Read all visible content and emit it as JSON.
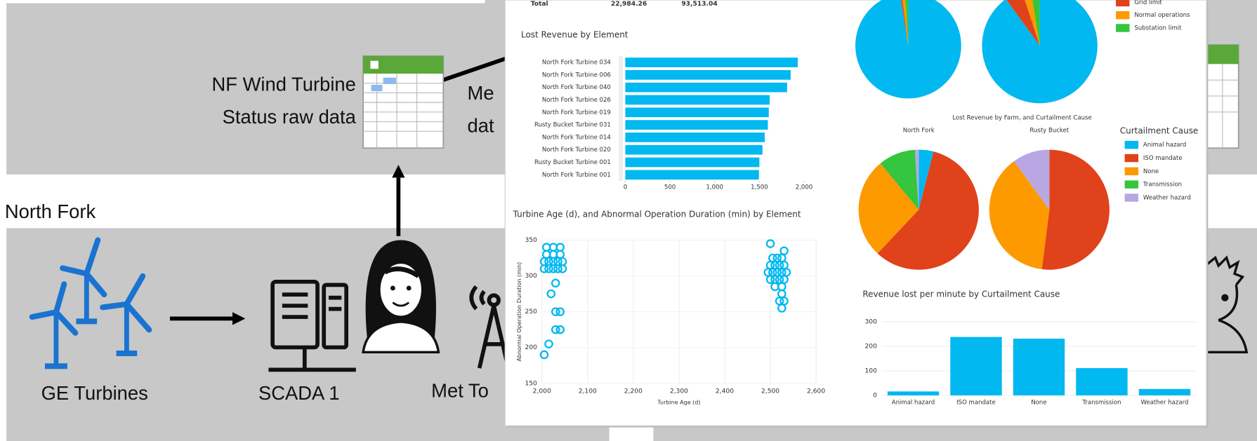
{
  "diagram": {
    "raw_data_label": [
      "NF Wind Turbine",
      "Status raw data"
    ],
    "met_data_label": [
      "Me",
      "dat"
    ],
    "farm_label": "North Fork",
    "nodes": [
      "GE Turbines",
      "SCADA 1",
      "Met To"
    ]
  },
  "table_total": [
    "Total",
    "22,984.26",
    "93,513.04"
  ],
  "chart_data": [
    {
      "type": "bar",
      "orientation": "horizontal",
      "title": "Lost Revenue by Element",
      "categories": [
        "North Fork Turbine 034",
        "North Fork Turbine 006",
        "North Fork Turbine 040",
        "North Fork Turbine 026",
        "North Fork Turbine 019",
        "Rusty Bucket Turbine 031",
        "North Fork Turbine 014",
        "North Fork Turbine 020",
        "Rusty Bucket Turbine 001",
        "North Fork Turbine 001"
      ],
      "values": [
        1930,
        1850,
        1810,
        1615,
        1605,
        1595,
        1560,
        1535,
        1500,
        1495
      ],
      "color": "#01b8f0",
      "xlim": [
        0,
        2000
      ],
      "xticks": [
        0,
        500,
        {
          "value": 1000,
          "label": "1,000"
        },
        {
          "value": 1500,
          "label": "1,500"
        },
        {
          "value": 2000,
          "label": "2,000"
        }
      ]
    },
    {
      "type": "scatter",
      "title": "Turbine Age (d), and Abnormal Operation Duration (min) by Element",
      "x_label": "Turbine Age (d)",
      "y_label": "Abnormal Operation Duration (min)",
      "color": "#01b8f0",
      "x": [
        2010,
        2025,
        2040,
        2010,
        2025,
        2040,
        2005,
        2015,
        2025,
        2035,
        2045,
        2005,
        2015,
        2025,
        2035,
        2045,
        2030,
        2020,
        2030,
        2040,
        2030,
        2040,
        2015,
        2005,
        2500,
        2530,
        2505,
        2515,
        2525,
        2500,
        2510,
        2520,
        2530,
        2495,
        2505,
        2515,
        2525,
        2535,
        2500,
        2510,
        2520,
        2530,
        2510,
        2525,
        2525,
        2520,
        2530,
        2525
      ],
      "y": [
        340,
        340,
        340,
        330,
        330,
        330,
        320,
        320,
        320,
        320,
        320,
        310,
        310,
        310,
        310,
        310,
        290,
        275,
        250,
        250,
        225,
        225,
        205,
        190,
        345,
        335,
        325,
        325,
        325,
        315,
        315,
        315,
        315,
        305,
        305,
        305,
        305,
        305,
        295,
        295,
        295,
        295,
        285,
        285,
        275,
        265,
        265,
        255
      ],
      "xlim": [
        2000,
        2600
      ],
      "xticks": [
        {
          "value": 2000,
          "label": "2,000"
        },
        {
          "value": 2100,
          "label": "2,100"
        },
        {
          "value": 2200,
          "label": "2,200"
        },
        {
          "value": 2300,
          "label": "2,300"
        },
        {
          "value": 2400,
          "label": "2,400"
        },
        {
          "value": 2500,
          "label": "2,500"
        },
        {
          "value": 2600,
          "label": "2,600"
        }
      ],
      "ylim": [
        150,
        350
      ],
      "yticks": [
        150,
        200,
        250,
        300,
        350
      ],
      "grid": true
    },
    {
      "type": "pie",
      "categories": [
        null,
        "Grid limit",
        "Normal operations",
        "Substation limit"
      ],
      "colors": [
        "#01b8f0",
        "#e0421b",
        "#fd9a00",
        "#35c53e"
      ],
      "series": [
        {
          "values": [
            97.5,
            0.5,
            1,
            1
          ]
        },
        {
          "values": [
            90,
            5,
            2.5,
            2.5
          ]
        }
      ]
    },
    {
      "type": "pie",
      "title": "Lost Revenue by Farm, and Curtailment Cause",
      "legend_title": "Curtailment Cause",
      "categories": [
        "Animal hazard",
        "ISO mandate",
        "None",
        "Transmission",
        "Weather hazard"
      ],
      "colors": [
        "#01b8f0",
        "#e0421b",
        "#fd9a00",
        "#35c53e",
        "#b9a7e4"
      ],
      "series": [
        {
          "name": "North Fork",
          "values": [
            4,
            58,
            27,
            10,
            1
          ]
        },
        {
          "name": "Rusty Bucket",
          "values": [
            0,
            52,
            38,
            0,
            10
          ]
        }
      ]
    },
    {
      "type": "bar",
      "title": "Revenue lost per minute by Curtailment Cause",
      "categories": [
        "Animal hazard",
        "ISO mandate",
        "None",
        "Transmission",
        "Weather hazard"
      ],
      "values": [
        16,
        238,
        231,
        111,
        26
      ],
      "color": "#01b8f0",
      "ylim": [
        0,
        300
      ],
      "yticks": [
        0,
        100,
        200,
        300
      ]
    }
  ]
}
